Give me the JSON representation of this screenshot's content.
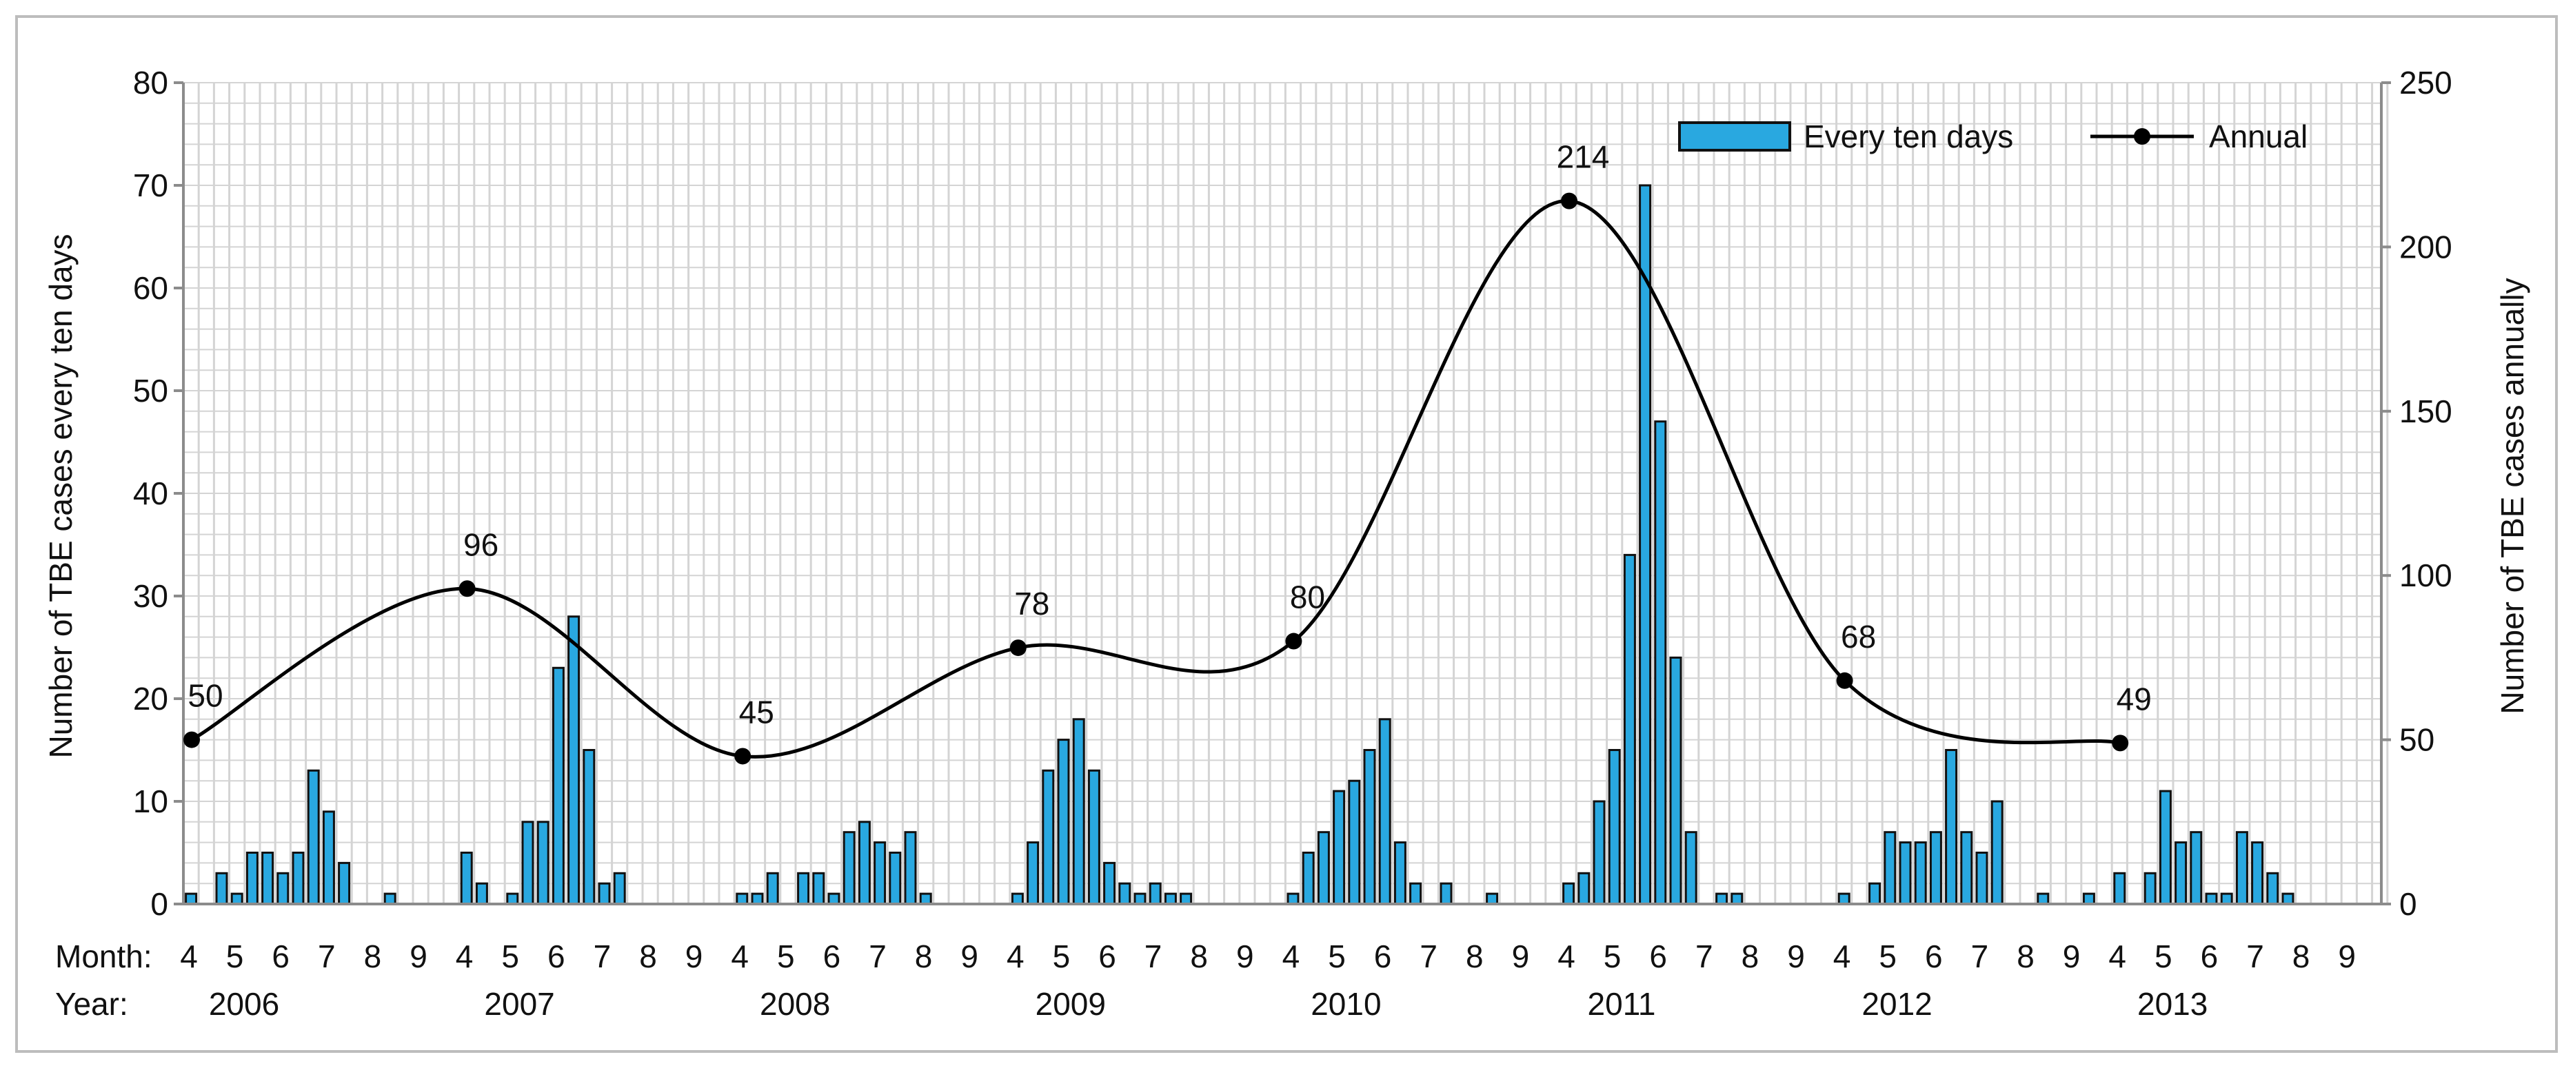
{
  "chart_data": {
    "type": "bar",
    "legend": {
      "placement": "top-right",
      "entries": [
        {
          "label": "Every ten days",
          "mark": "bar"
        },
        {
          "label": "Annual",
          "mark": "line-marker"
        }
      ]
    },
    "y_left": {
      "label": "Number of TBE cases every ten days",
      "range": [
        0,
        80
      ],
      "ticks": [
        "0",
        "10",
        "20",
        "30",
        "40",
        "50",
        "60",
        "70",
        "80"
      ]
    },
    "y_right": {
      "label": "Number of TBE cases annually",
      "range": [
        0,
        250
      ],
      "ticks": [
        "0",
        "50",
        "100",
        "150",
        "200",
        "250"
      ]
    },
    "x": {
      "month_label": "Month:",
      "year_label": "Year:",
      "months": [
        "4",
        "5",
        "6",
        "7",
        "8",
        "9"
      ],
      "years": [
        "2006",
        "2007",
        "2008",
        "2009",
        "2010",
        "2011",
        "2012",
        "2013"
      ],
      "periods_per_year": 18
    },
    "grid": {
      "vertical": true,
      "horizontal": true
    },
    "colors": {
      "bar": "#29a8e0",
      "bar_edge": "#111111",
      "line": "#000000",
      "grid": "#d4d4d4",
      "axis": "#8c8c8c"
    },
    "series": [
      {
        "name": "Every ten days",
        "type": "bar",
        "axis": "left",
        "values": [
          [
            1,
            0,
            3,
            1,
            5,
            5,
            3,
            5,
            13,
            9,
            4,
            0,
            0,
            1,
            0,
            0,
            0,
            0
          ],
          [
            5,
            2,
            0,
            1,
            8,
            8,
            23,
            28,
            15,
            2,
            3,
            0,
            0,
            0,
            0,
            0,
            0,
            0
          ],
          [
            1,
            1,
            3,
            0,
            3,
            3,
            1,
            7,
            8,
            6,
            5,
            7,
            1,
            0,
            0,
            0,
            0,
            0
          ],
          [
            1,
            6,
            13,
            16,
            18,
            13,
            4,
            2,
            1,
            2,
            1,
            1,
            0,
            0,
            0,
            0,
            0,
            0
          ],
          [
            1,
            5,
            7,
            11,
            12,
            15,
            18,
            6,
            2,
            0,
            2,
            0,
            0,
            1,
            0,
            0,
            0,
            0
          ],
          [
            2,
            3,
            10,
            15,
            34,
            70,
            47,
            24,
            7,
            0,
            1,
            1,
            0,
            0,
            0,
            0,
            0,
            0
          ],
          [
            1,
            0,
            2,
            7,
            6,
            6,
            7,
            15,
            7,
            5,
            10,
            0,
            0,
            1,
            0,
            0,
            1,
            0
          ],
          [
            3,
            0,
            3,
            11,
            6,
            7,
            1,
            1,
            7,
            6,
            3,
            1,
            0,
            0,
            0,
            0,
            0,
            0
          ]
        ]
      },
      {
        "name": "Annual",
        "type": "line",
        "axis": "right",
        "smooth": true,
        "points": [
          {
            "year": "2006",
            "value": 50,
            "label": "50"
          },
          {
            "year": "2007",
            "value": 96,
            "label": "96"
          },
          {
            "year": "2008",
            "value": 45,
            "label": "45"
          },
          {
            "year": "2009",
            "value": 78,
            "label": "78"
          },
          {
            "year": "2010",
            "value": 80,
            "label": "80"
          },
          {
            "year": "2011",
            "value": 214,
            "label": "214"
          },
          {
            "year": "2012",
            "value": 68,
            "label": "68"
          },
          {
            "year": "2013",
            "value": 49,
            "label": "49"
          }
        ]
      }
    ]
  }
}
